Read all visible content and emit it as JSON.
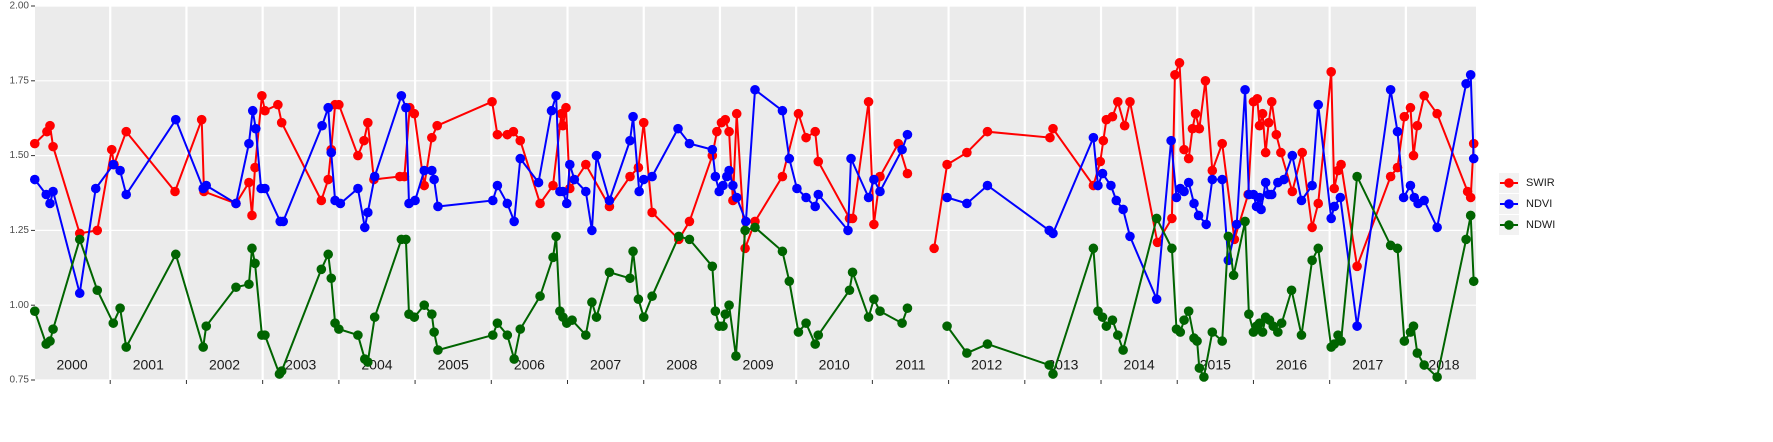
{
  "chart_data": {
    "type": "line",
    "xlim": [
      2000,
      2018.92
    ],
    "xticks": [
      2001,
      2002,
      2003,
      2004,
      2005,
      2006,
      2007,
      2008,
      2009,
      2010,
      2011,
      2012,
      2013,
      2014,
      2015,
      2016,
      2017,
      2018
    ],
    "ylim": [
      0.75,
      2.0
    ],
    "yticks": [
      {
        "value": 0.75,
        "label": "0.75"
      },
      {
        "value": 1.0,
        "label": "1.00"
      },
      {
        "value": 1.25,
        "label": "1.25"
      },
      {
        "value": 1.5,
        "label": "1.50"
      },
      {
        "value": 1.75,
        "label": "1.75"
      },
      {
        "value": 2.0,
        "label": "2.00"
      }
    ],
    "grid": true,
    "legend": "right",
    "annotations": [
      {
        "text": "2000",
        "x": 2000.5
      },
      {
        "text": "2001",
        "x": 2001.5
      },
      {
        "text": "2002",
        "x": 2002.5
      },
      {
        "text": "2003",
        "x": 2003.5
      },
      {
        "text": "2004",
        "x": 2004.5
      },
      {
        "text": "2005",
        "x": 2005.5
      },
      {
        "text": "2006",
        "x": 2006.5
      },
      {
        "text": "2007",
        "x": 2007.5
      },
      {
        "text": "2008",
        "x": 2008.5
      },
      {
        "text": "2009",
        "x": 2009.5
      },
      {
        "text": "2010",
        "x": 2010.5
      },
      {
        "text": "2011",
        "x": 2011.5
      },
      {
        "text": "2012",
        "x": 2012.5
      },
      {
        "text": "2013",
        "x": 2013.5
      },
      {
        "text": "2014",
        "x": 2014.5
      },
      {
        "text": "2015",
        "x": 2015.5
      },
      {
        "text": "2016",
        "x": 2016.5
      },
      {
        "text": "2017",
        "x": 2017.5
      },
      {
        "text": "2018",
        "x": 2018.5
      }
    ],
    "series": [
      {
        "name": "SWIR",
        "color": "#ff0000",
        "x": [
          2000.01,
          2000.17,
          2000.21,
          2000.25,
          2000.6,
          2000.83,
          2001.02,
          2001.05,
          2001.21,
          2001.85,
          2002.2,
          2002.23,
          2002.65,
          2002.82,
          2002.86,
          2002.9,
          2002.99,
          2003.03,
          2003.2,
          2003.25,
          2003.77,
          2003.86,
          2003.9,
          2003.95,
          2004.0,
          2004.25,
          2004.33,
          2004.38,
          2004.46,
          2004.8,
          2004.86,
          2004.93,
          2004.99,
          2005.12,
          2005.22,
          2005.29,
          2006.01,
          2006.08,
          2006.21,
          2006.29,
          2006.38,
          2006.64,
          2006.81,
          2006.92,
          2006.94,
          2006.98,
          2007.03,
          2007.24,
          2007.55,
          2007.82,
          2007.93,
          2008.0,
          2008.11,
          2008.46,
          2008.6,
          2008.9,
          2008.96,
          2009.02,
          2009.07,
          2009.12,
          2009.17,
          2009.22,
          2009.33,
          2009.46,
          2009.82,
          2010.03,
          2010.13,
          2010.25,
          2010.29,
          2010.7,
          2010.74,
          2010.95,
          2011.02,
          2011.1,
          2011.34,
          2011.46,
          null,
          2011.81,
          2011.98,
          2012.24,
          2012.51,
          2013.33,
          2013.37,
          2013.9,
          2013.99,
          2014.03,
          2014.07,
          2014.15,
          2014.22,
          2014.31,
          2014.38,
          2014.74,
          2014.93,
          2014.97,
          2015.03,
          2015.09,
          2015.15,
          2015.2,
          2015.24,
          2015.29,
          2015.37,
          2015.46,
          2015.59,
          2015.75,
          2015.93,
          2016.0,
          2016.05,
          2016.08,
          2016.12,
          2016.16,
          2016.2,
          2016.24,
          2016.3,
          2016.36,
          2016.51,
          2016.64,
          2016.77,
          2016.85,
          2017.02,
          2017.06,
          2017.11,
          2017.15,
          2017.36,
          2017.8,
          2017.89,
          2017.98,
          2018.06,
          2018.1,
          2018.15,
          2018.24,
          2018.41,
          2018.81,
          2018.85,
          2018.89
        ],
        "values": [
          1.54,
          1.58,
          1.6,
          1.53,
          1.24,
          1.25,
          1.52,
          1.47,
          1.58,
          1.38,
          1.62,
          1.38,
          1.34,
          1.41,
          1.3,
          1.46,
          1.7,
          1.65,
          1.67,
          1.61,
          1.35,
          1.42,
          1.52,
          1.67,
          1.67,
          1.5,
          1.55,
          1.61,
          1.42,
          1.43,
          1.43,
          1.66,
          1.64,
          1.4,
          1.56,
          1.6,
          1.68,
          1.57,
          1.57,
          1.58,
          1.55,
          1.34,
          1.4,
          1.64,
          1.6,
          1.66,
          1.39,
          1.47,
          1.33,
          1.43,
          1.46,
          1.61,
          1.31,
          1.22,
          1.28,
          1.5,
          1.58,
          1.61,
          1.62,
          1.58,
          1.35,
          1.64,
          1.19,
          1.28,
          1.43,
          1.64,
          1.56,
          1.58,
          1.48,
          1.29,
          1.29,
          1.68,
          1.27,
          1.43,
          1.54,
          1.44,
          null,
          1.19,
          1.47,
          1.51,
          1.58,
          1.56,
          1.59,
          1.4,
          1.48,
          1.55,
          1.62,
          1.63,
          1.68,
          1.6,
          1.68,
          1.21,
          1.29,
          1.77,
          1.81,
          1.52,
          1.49,
          1.59,
          1.64,
          1.59,
          1.75,
          1.45,
          1.54,
          1.22,
          1.37,
          1.68,
          1.69,
          1.6,
          1.64,
          1.51,
          1.61,
          1.68,
          1.57,
          1.51,
          1.38,
          1.51,
          1.26,
          1.34,
          1.78,
          1.39,
          1.45,
          1.47,
          1.13,
          1.43,
          1.46,
          1.63,
          1.66,
          1.5,
          1.6,
          1.7,
          1.64,
          1.38,
          1.36,
          1.54
        ]
      },
      {
        "name": "NDVI",
        "color": "#0000ff",
        "x": [
          2000.01,
          2000.16,
          2000.21,
          2000.25,
          2000.6,
          2000.81,
          2001.04,
          2001.13,
          2001.21,
          2001.86,
          2002.22,
          2002.26,
          2002.65,
          2002.82,
          2002.87,
          2002.91,
          2002.98,
          2003.03,
          2003.23,
          2003.27,
          2003.78,
          2003.86,
          2003.9,
          2003.95,
          2004.02,
          2004.25,
          2004.34,
          2004.38,
          2004.47,
          2004.82,
          2004.88,
          2004.92,
          2005.0,
          2005.12,
          2005.22,
          2005.25,
          2005.3,
          2006.02,
          2006.08,
          2006.21,
          2006.3,
          2006.38,
          2006.62,
          2006.79,
          2006.85,
          2006.9,
          2006.94,
          2006.99,
          2007.03,
          2007.09,
          2007.24,
          2007.32,
          2007.38,
          2007.55,
          2007.82,
          2007.86,
          2007.94,
          2008.0,
          2008.11,
          2008.45,
          2008.6,
          2008.9,
          2008.94,
          2008.99,
          2009.04,
          2009.09,
          2009.12,
          2009.17,
          2009.22,
          2009.34,
          2009.46,
          2009.82,
          2009.91,
          2010.01,
          2010.13,
          2010.25,
          2010.29,
          2010.68,
          2010.72,
          2010.95,
          2011.02,
          2011.1,
          2011.39,
          2011.46,
          null,
          2011.98,
          2012.24,
          2012.51,
          2013.32,
          2013.37,
          2013.9,
          2013.96,
          2014.02,
          2014.13,
          2014.2,
          2014.29,
          2014.38,
          2014.73,
          2014.92,
          2014.99,
          2015.04,
          2015.09,
          2015.15,
          2015.22,
          2015.28,
          2015.38,
          2015.46,
          2015.59,
          2015.67,
          2015.78,
          2015.89,
          2015.94,
          2016.0,
          2016.04,
          2016.08,
          2016.1,
          2016.16,
          2016.2,
          2016.24,
          2016.32,
          2016.4,
          2016.51,
          2016.63,
          2016.77,
          2016.85,
          2017.02,
          2017.06,
          2017.14,
          2017.36,
          2017.8,
          2017.89,
          2017.97,
          2018.06,
          2018.11,
          2018.16,
          2018.24,
          2018.41,
          2018.79,
          2018.85,
          2018.89
        ],
        "values": [
          1.42,
          1.37,
          1.34,
          1.38,
          1.04,
          1.39,
          1.47,
          1.45,
          1.37,
          1.62,
          1.39,
          1.4,
          1.34,
          1.54,
          1.65,
          1.59,
          1.39,
          1.39,
          1.28,
          1.28,
          1.6,
          1.66,
          1.51,
          1.35,
          1.34,
          1.39,
          1.26,
          1.31,
          1.43,
          1.7,
          1.66,
          1.34,
          1.35,
          1.45,
          1.45,
          1.42,
          1.33,
          1.35,
          1.4,
          1.34,
          1.28,
          1.49,
          1.41,
          1.65,
          1.7,
          1.38,
          1.38,
          1.34,
          1.47,
          1.42,
          1.38,
          1.25,
          1.5,
          1.35,
          1.55,
          1.63,
          1.38,
          1.42,
          1.43,
          1.59,
          1.54,
          1.52,
          1.43,
          1.38,
          1.4,
          1.43,
          1.45,
          1.4,
          1.36,
          1.28,
          1.72,
          1.65,
          1.49,
          1.39,
          1.36,
          1.33,
          1.37,
          1.25,
          1.49,
          1.36,
          1.42,
          1.38,
          1.52,
          1.57,
          null,
          1.36,
          1.34,
          1.4,
          1.25,
          1.24,
          1.56,
          1.4,
          1.44,
          1.4,
          1.35,
          1.32,
          1.23,
          1.02,
          1.55,
          1.36,
          1.39,
          1.38,
          1.41,
          1.34,
          1.3,
          1.27,
          1.42,
          1.42,
          1.15,
          1.27,
          1.72,
          1.37,
          1.37,
          1.33,
          1.36,
          1.32,
          1.41,
          1.37,
          1.37,
          1.41,
          1.42,
          1.5,
          1.35,
          1.4,
          1.67,
          1.29,
          1.33,
          1.36,
          0.93,
          1.72,
          1.58,
          1.36,
          1.4,
          1.36,
          1.34,
          1.35,
          1.26,
          1.74,
          1.77,
          1.49
        ]
      },
      {
        "name": "NDWI",
        "color": "#006400",
        "x": [
          2000.01,
          2000.16,
          2000.21,
          2000.25,
          2000.6,
          2000.83,
          2001.04,
          2001.13,
          2001.21,
          2001.86,
          2002.22,
          2002.26,
          2002.65,
          2002.82,
          2002.86,
          2002.9,
          2002.99,
          2003.03,
          2003.22,
          2003.25,
          2003.77,
          2003.86,
          2003.9,
          2003.95,
          2004.0,
          2004.25,
          2004.34,
          2004.38,
          2004.47,
          2004.82,
          2004.88,
          2004.92,
          2004.99,
          2005.12,
          2005.22,
          2005.25,
          2005.3,
          2006.02,
          2006.08,
          2006.21,
          2006.3,
          2006.38,
          2006.64,
          2006.81,
          2006.85,
          2006.9,
          2006.94,
          2006.99,
          2007.06,
          2007.24,
          2007.32,
          2007.38,
          2007.55,
          2007.82,
          2007.86,
          2007.93,
          2008.0,
          2008.11,
          2008.46,
          2008.6,
          2008.9,
          2008.94,
          2008.99,
          2009.04,
          2009.07,
          2009.12,
          2009.21,
          2009.33,
          2009.46,
          2009.82,
          2009.91,
          2010.03,
          2010.13,
          2010.25,
          2010.29,
          2010.7,
          2010.74,
          2010.95,
          2011.02,
          2011.1,
          2011.39,
          2011.46,
          null,
          2011.98,
          2012.24,
          2012.51,
          2013.32,
          2013.37,
          2013.9,
          2013.96,
          2014.02,
          2014.07,
          2014.15,
          2014.22,
          2014.29,
          2014.73,
          2014.93,
          2014.99,
          2015.04,
          2015.09,
          2015.15,
          2015.22,
          2015.26,
          2015.29,
          2015.35,
          2015.46,
          2015.59,
          2015.67,
          2015.74,
          2015.89,
          2015.94,
          2016.0,
          2016.04,
          2016.08,
          2016.12,
          2016.16,
          2016.21,
          2016.26,
          2016.32,
          2016.37,
          2016.5,
          2016.63,
          2016.77,
          2016.85,
          2017.02,
          2017.06,
          2017.11,
          2017.15,
          2017.36,
          2017.8,
          2017.89,
          2017.98,
          2018.06,
          2018.1,
          2018.15,
          2018.24,
          2018.41,
          2018.79,
          2018.85,
          2018.89
        ],
        "values": [
          0.98,
          0.87,
          0.88,
          0.92,
          1.22,
          1.05,
          0.94,
          0.99,
          0.86,
          1.17,
          0.86,
          0.93,
          1.06,
          1.07,
          1.19,
          1.14,
          0.9,
          0.9,
          0.77,
          0.78,
          1.12,
          1.17,
          1.09,
          0.94,
          0.92,
          0.9,
          0.82,
          0.81,
          0.96,
          1.22,
          1.22,
          0.97,
          0.96,
          1.0,
          0.97,
          0.91,
          0.85,
          0.9,
          0.94,
          0.9,
          0.82,
          0.92,
          1.03,
          1.16,
          1.23,
          0.98,
          0.96,
          0.94,
          0.95,
          0.9,
          1.01,
          0.96,
          1.11,
          1.09,
          1.18,
          1.02,
          0.96,
          1.03,
          1.23,
          1.22,
          1.13,
          0.98,
          0.93,
          0.93,
          0.97,
          1.0,
          0.83,
          1.25,
          1.26,
          1.18,
          1.08,
          0.91,
          0.94,
          0.87,
          0.9,
          1.05,
          1.11,
          0.96,
          1.02,
          0.98,
          0.94,
          0.99,
          null,
          0.93,
          0.84,
          0.87,
          0.8,
          0.77,
          1.19,
          0.98,
          0.96,
          0.93,
          0.95,
          0.9,
          0.85,
          1.29,
          1.19,
          0.92,
          0.91,
          0.95,
          0.98,
          0.89,
          0.88,
          0.79,
          0.76,
          0.91,
          0.88,
          1.23,
          1.1,
          1.28,
          0.97,
          0.91,
          0.93,
          0.94,
          0.91,
          0.96,
          0.95,
          0.93,
          0.91,
          0.94,
          1.05,
          0.9,
          1.15,
          1.19,
          0.86,
          0.87,
          0.9,
          0.88,
          1.43,
          1.2,
          1.19,
          0.88,
          0.91,
          0.93,
          0.84,
          0.8,
          0.76,
          1.22,
          1.3,
          1.08
        ]
      }
    ]
  }
}
